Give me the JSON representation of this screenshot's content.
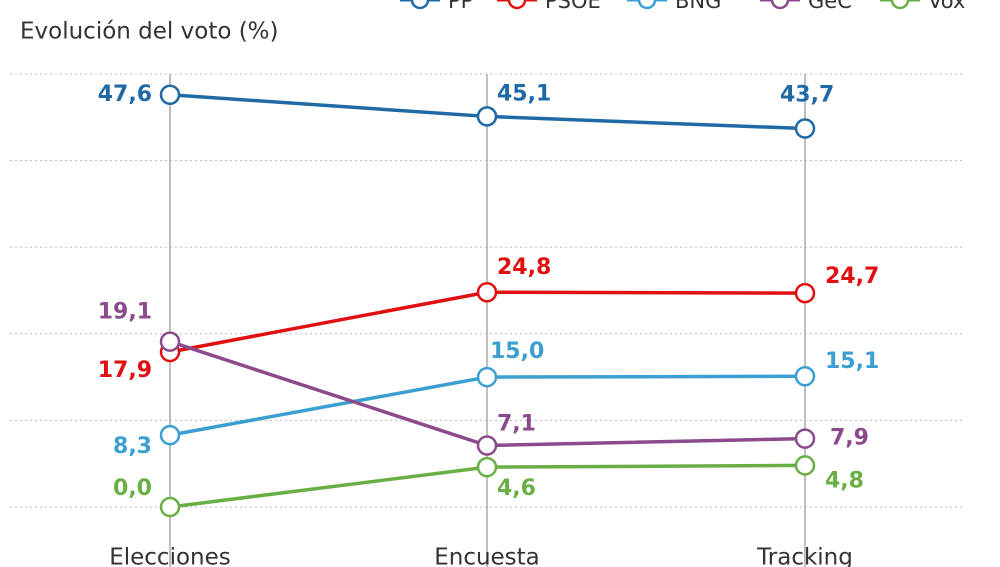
{
  "chart_data": {
    "type": "line",
    "title": "Evolución del voto (%)",
    "categories": [
      "Elecciones",
      "Encuesta",
      "Tracking"
    ],
    "series": [
      {
        "name": "PP",
        "color": "#1f6aa5",
        "values": [
          47.6,
          45.1,
          43.7
        ],
        "value_labels": [
          "47,6",
          "45,1",
          "43,7"
        ]
      },
      {
        "name": "PSOE",
        "color": "#e01010",
        "values": [
          17.9,
          24.8,
          24.7
        ],
        "value_labels": [
          "17,9",
          "24,8",
          "24,7"
        ]
      },
      {
        "name": "BNG",
        "color": "#3b9fd2",
        "values": [
          8.3,
          15.0,
          15.1
        ],
        "value_labels": [
          "8,3",
          "15,0",
          "15,1"
        ]
      },
      {
        "name": "GeC",
        "color": "#8b4a8c",
        "values": [
          19.1,
          7.1,
          7.9
        ],
        "value_labels": [
          "19,1",
          "7,1",
          "7,9"
        ]
      },
      {
        "name": "Vox",
        "color": "#6aaf45",
        "values": [
          0.0,
          4.6,
          4.8
        ],
        "value_labels": [
          "0,0",
          "4,6",
          "4,8"
        ]
      }
    ],
    "ylim": [
      0,
      52
    ],
    "yticks": [
      0,
      10,
      20,
      30,
      40,
      50
    ],
    "grid": true
  }
}
